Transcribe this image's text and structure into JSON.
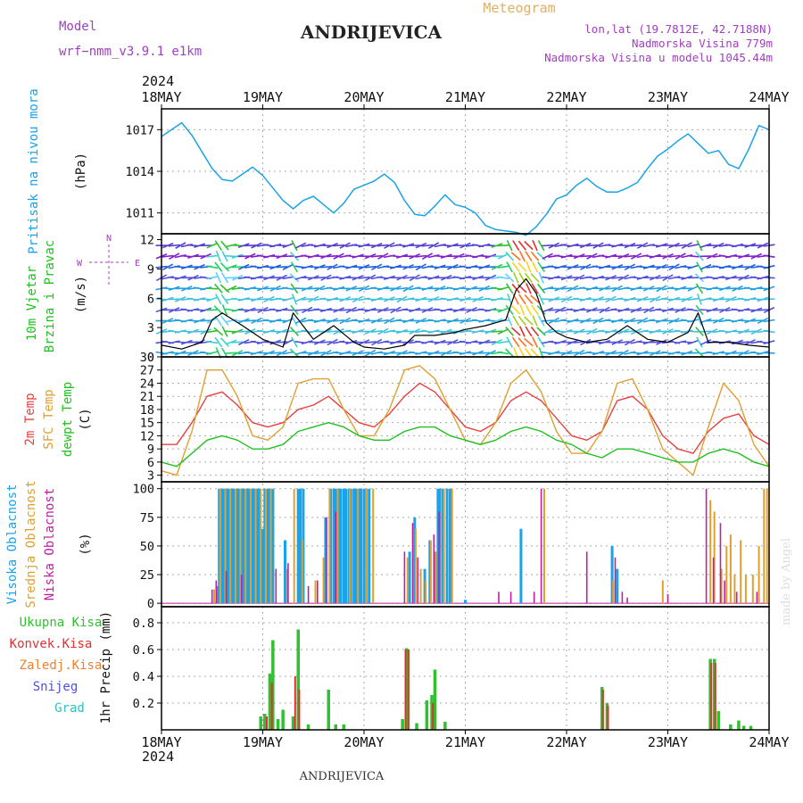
{
  "header": {
    "model_label": "Model",
    "model_value": "wrf−nmm_v3.9.1  e1km",
    "station": "ANDRIJEVICA",
    "meteogram_label": "Meteogram",
    "lonlat": "lon,lat (19.7812E, 42.7188N)",
    "elevation": "Nadmorska Visina 779m",
    "model_elevation": "Nadmorska Visina u modelu 1045.44m",
    "footer_station": "ANDRIJEVICA",
    "watermark": "made by Angel",
    "year": "2024"
  },
  "colors": {
    "pressure": "#1aa3e8",
    "temp2m": "#e84040",
    "sfc": "#e0a030",
    "dewpt": "#20c020",
    "precip": "#30c030",
    "conv": "#e03030",
    "frozen": "#f08030",
    "snow": "#5050e0",
    "hail": "#30c0c0",
    "high_cloud": "#1aa3e8",
    "mid_cloud": "#e0a030",
    "low_cloud": "#c020a0",
    "purple_text": "#a040c0",
    "orange_text": "#e0b060"
  },
  "chart_data": [
    {
      "type": "line",
      "panel": "pressure",
      "ylabel": "Pritisak na nivou mora",
      "unit": "(hPa)",
      "x_labels": [
        "18MAY",
        "19MAY",
        "20MAY",
        "21MAY",
        "22MAY",
        "23MAY",
        "24MAY"
      ],
      "yticks": [
        1011,
        1014,
        1017
      ],
      "ylim": [
        1009.5,
        1018.5
      ],
      "x": [
        0,
        0.1,
        0.2,
        0.3,
        0.4,
        0.5,
        0.6,
        0.7,
        0.8,
        0.9,
        1.0,
        1.1,
        1.2,
        1.3,
        1.4,
        1.5,
        1.6,
        1.7,
        1.8,
        1.9,
        2.0,
        2.1,
        2.2,
        2.3,
        2.4,
        2.5,
        2.6,
        2.7,
        2.8,
        2.9,
        3.0,
        3.1,
        3.2,
        3.3,
        3.4,
        3.5,
        3.6,
        3.7,
        3.8,
        3.9,
        4.0,
        4.1,
        4.2,
        4.3,
        4.4,
        4.5,
        4.6,
        4.7,
        4.8,
        4.9,
        5.0,
        5.1,
        5.2,
        5.3,
        5.4,
        5.5,
        5.6,
        5.7,
        5.8,
        5.9,
        6.0
      ],
      "values": [
        1016.5,
        1017.0,
        1017.5,
        1016.6,
        1015.4,
        1014.2,
        1013.4,
        1013.3,
        1013.8,
        1014.3,
        1013.7,
        1012.8,
        1011.9,
        1011.3,
        1011.9,
        1012.2,
        1011.6,
        1011.0,
        1011.7,
        1012.7,
        1013.0,
        1013.3,
        1013.8,
        1013.2,
        1011.9,
        1010.9,
        1010.8,
        1011.5,
        1012.3,
        1011.6,
        1011.4,
        1011.0,
        1010.1,
        1009.8,
        1009.7,
        1009.6,
        1009.4,
        1010.0,
        1010.9,
        1012.0,
        1012.3,
        1013.0,
        1013.5,
        1012.9,
        1012.5,
        1012.5,
        1012.8,
        1013.2,
        1014.2,
        1015.1,
        1015.6,
        1016.2,
        1016.7,
        1016.0,
        1015.3,
        1015.5,
        1014.5,
        1014.2,
        1015.6,
        1017.3,
        1017.0
      ]
    },
    {
      "type": "line",
      "panel": "wind",
      "ylabel": "10m Vjetar Brzina i Pravac",
      "unit": "(m/s)",
      "compass": {
        "n": "N",
        "w": "W",
        "e": "E"
      },
      "yticks": [
        0,
        3,
        6,
        9,
        12
      ],
      "ylim": [
        0,
        12.6
      ],
      "series": [
        {
          "name": "Brzina",
          "x": [
            0,
            0.2,
            0.4,
            0.5,
            0.6,
            0.8,
            1.0,
            1.2,
            1.3,
            1.5,
            1.7,
            1.9,
            2.0,
            2.2,
            2.4,
            2.5,
            2.7,
            2.9,
            3.0,
            3.2,
            3.4,
            3.5,
            3.6,
            3.7,
            3.8,
            3.9,
            4.0,
            4.2,
            4.4,
            4.6,
            4.8,
            5.0,
            5.2,
            5.3,
            5.4,
            5.6,
            5.8,
            6.0
          ],
          "values": [
            1.2,
            0.8,
            1.5,
            3.8,
            4.5,
            3.2,
            1.8,
            1.0,
            4.5,
            1.8,
            3.2,
            1.5,
            1.0,
            0.8,
            1.2,
            2.2,
            2.2,
            2.5,
            2.8,
            3.2,
            3.8,
            6.8,
            8.0,
            6.5,
            3.5,
            2.5,
            2.0,
            1.5,
            1.8,
            3.2,
            1.8,
            1.5,
            2.5,
            4.5,
            1.5,
            1.5,
            1.2,
            1.0
          ]
        }
      ]
    },
    {
      "type": "line",
      "panel": "temperature",
      "ylabels": [
        "2m Temp",
        "SFC Temp",
        "dewpt Temp"
      ],
      "unit": "(C)",
      "yticks": [
        3,
        6,
        9,
        12,
        15,
        18,
        21,
        24,
        27,
        30
      ],
      "ylim": [
        1.5,
        30
      ],
      "series": [
        {
          "name": "2m Temp",
          "x": [
            0,
            0.15,
            0.3,
            0.45,
            0.6,
            0.75,
            0.9,
            1.05,
            1.2,
            1.35,
            1.5,
            1.65,
            1.8,
            1.95,
            2.1,
            2.25,
            2.4,
            2.55,
            2.7,
            2.85,
            3.0,
            3.15,
            3.3,
            3.45,
            3.6,
            3.75,
            3.9,
            4.05,
            4.2,
            4.35,
            4.5,
            4.65,
            4.8,
            4.95,
            5.1,
            5.25,
            5.4,
            5.55,
            5.7,
            5.85,
            6.0
          ],
          "values": [
            10,
            10,
            15,
            21,
            22,
            19,
            15,
            14,
            15,
            18,
            19,
            21,
            18,
            15,
            14,
            17,
            21,
            24,
            22,
            18,
            14,
            13,
            15,
            20,
            22,
            20,
            16,
            12,
            11,
            13,
            20,
            21,
            18,
            12,
            9,
            8,
            13,
            16,
            17,
            12,
            10
          ]
        },
        {
          "name": "SFC Temp",
          "x": [
            0,
            0.15,
            0.3,
            0.45,
            0.6,
            0.75,
            0.9,
            1.05,
            1.2,
            1.35,
            1.5,
            1.65,
            1.8,
            1.95,
            2.1,
            2.25,
            2.4,
            2.55,
            2.7,
            2.85,
            3.0,
            3.15,
            3.3,
            3.45,
            3.6,
            3.75,
            3.9,
            4.05,
            4.2,
            4.35,
            4.5,
            4.65,
            4.8,
            4.95,
            5.1,
            5.25,
            5.4,
            5.55,
            5.7,
            5.85,
            6.0
          ],
          "values": [
            4,
            3,
            13,
            27,
            27,
            21,
            12,
            11,
            14,
            24,
            25,
            25,
            18,
            12,
            12,
            18,
            27,
            28,
            25,
            18,
            11,
            10,
            15,
            24,
            27,
            22,
            13,
            8,
            8,
            13,
            24,
            25,
            18,
            9,
            6,
            3,
            14,
            24,
            20,
            10,
            5
          ]
        },
        {
          "name": "dewpt Temp",
          "x": [
            0,
            0.15,
            0.3,
            0.45,
            0.6,
            0.75,
            0.9,
            1.05,
            1.2,
            1.35,
            1.5,
            1.65,
            1.8,
            1.95,
            2.1,
            2.25,
            2.4,
            2.55,
            2.7,
            2.85,
            3.0,
            3.15,
            3.3,
            3.45,
            3.6,
            3.75,
            3.9,
            4.05,
            4.2,
            4.35,
            4.5,
            4.65,
            4.8,
            4.95,
            5.1,
            5.25,
            5.4,
            5.55,
            5.7,
            5.85,
            6.0
          ],
          "values": [
            6,
            5,
            8,
            11,
            12,
            11,
            9,
            9,
            10,
            13,
            14,
            15,
            14,
            12,
            11,
            11,
            13,
            14,
            14,
            12,
            11,
            10,
            11,
            13,
            14,
            13,
            11,
            10,
            8,
            7,
            9,
            9,
            8,
            7,
            6,
            6,
            8,
            9,
            8,
            6,
            5
          ]
        }
      ]
    },
    {
      "type": "bar",
      "panel": "cloud",
      "ylabels": [
        "Visoka Oblacnost",
        "Srednja Oblacnost",
        "Niska Oblacnost"
      ],
      "unit": "(%)",
      "yticks": [
        0,
        25,
        50,
        75,
        100
      ],
      "ylim": [
        -3,
        106
      ],
      "series": [
        {
          "name": "Visoka Oblacnost",
          "x": [
            0.55,
            0.57,
            0.6,
            0.62,
            0.65,
            0.67,
            0.7,
            0.72,
            0.75,
            0.77,
            0.8,
            0.82,
            0.85,
            0.87,
            0.9,
            0.92,
            0.95,
            0.97,
            1.0,
            1.02,
            1.05,
            1.07,
            1.1,
            1.22,
            1.35,
            1.37,
            1.4,
            1.62,
            1.67,
            1.7,
            1.72,
            1.75,
            1.77,
            1.8,
            1.82,
            1.85,
            1.87,
            1.9,
            1.92,
            1.95,
            1.97,
            2.0,
            2.02,
            2.05,
            2.45,
            2.5,
            2.6,
            2.65,
            2.7,
            2.73,
            2.75,
            2.78,
            2.82,
            2.85,
            3.0,
            3.55,
            4.45,
            4.5
          ],
          "values": [
            15,
            100,
            100,
            100,
            100,
            100,
            100,
            100,
            100,
            100,
            100,
            100,
            100,
            100,
            100,
            100,
            100,
            100,
            65,
            100,
            100,
            100,
            100,
            55,
            100,
            100,
            100,
            75,
            100,
            100,
            100,
            100,
            100,
            100,
            100,
            100,
            100,
            100,
            100,
            100,
            100,
            100,
            100,
            100,
            45,
            75,
            30,
            55,
            45,
            100,
            100,
            100,
            100,
            100,
            3,
            65,
            50,
            30
          ]
        },
        {
          "name": "Srednja Oblacnost",
          "x": [
            0.52,
            0.58,
            0.63,
            0.68,
            0.73,
            0.78,
            0.83,
            0.88,
            0.93,
            0.98,
            1.03,
            1.08,
            1.24,
            1.31,
            1.39,
            1.52,
            1.6,
            1.66,
            1.74,
            1.86,
            1.94,
            2.02,
            2.09,
            2.43,
            2.51,
            2.56,
            2.61,
            2.66,
            2.71,
            2.79,
            2.87,
            3.78,
            4.46,
            4.95,
            5.42,
            5.46,
            5.53,
            5.58,
            5.62,
            5.66,
            5.72,
            5.77,
            5.84,
            5.9,
            5.95,
            5.98
          ],
          "values": [
            12,
            100,
            100,
            100,
            100,
            100,
            100,
            100,
            100,
            100,
            100,
            100,
            30,
            100,
            55,
            20,
            40,
            100,
            100,
            100,
            100,
            100,
            100,
            40,
            65,
            30,
            20,
            55,
            45,
            100,
            100,
            100,
            20,
            20,
            90,
            80,
            30,
            50,
            60,
            25,
            55,
            25,
            25,
            50,
            100,
            100
          ]
        },
        {
          "name": "Niska Oblacnost",
          "x": [
            0.5,
            0.54,
            0.64,
            0.79,
            1.13,
            1.25,
            1.45,
            1.54,
            1.63,
            1.72,
            2.4,
            2.48,
            2.53,
            2.69,
            2.74,
            3.33,
            3.45,
            3.68,
            3.75,
            4.2,
            4.48,
            4.55,
            4.6,
            5.0,
            5.38,
            5.45,
            5.52,
            5.56,
            5.68,
            5.88
          ],
          "values": [
            12,
            20,
            28,
            25,
            30,
            35,
            15,
            20,
            75,
            80,
            45,
            70,
            40,
            60,
            80,
            10,
            10,
            10,
            100,
            45,
            40,
            10,
            5,
            8,
            100,
            40,
            70,
            20,
            10,
            10
          ]
        }
      ]
    },
    {
      "type": "bar",
      "panel": "precip",
      "legend": [
        "Ukupna Kisa",
        "Konvek.Kisa",
        "Zaledj.Kisa",
        "Snijeg",
        "Grad"
      ],
      "unit": "1hr Precip (mm)",
      "yticks": [
        0.2,
        0.4,
        0.6,
        0.8
      ],
      "ylim": [
        0,
        0.92
      ],
      "series": [
        {
          "name": "Ukupna Kisa",
          "x": [
            0.98,
            1.02,
            1.07,
            1.1,
            1.15,
            1.2,
            1.3,
            1.35,
            1.45,
            1.65,
            1.72,
            1.8,
            2.38,
            2.42,
            2.52,
            2.62,
            2.67,
            2.7,
            2.8,
            4.35,
            4.4,
            5.42,
            5.46,
            5.5,
            5.62,
            5.7,
            5.75,
            5.82
          ],
          "values": [
            0.1,
            0.12,
            0.42,
            0.67,
            0.08,
            0.15,
            0.1,
            0.75,
            0.04,
            0.3,
            0.04,
            0.04,
            0.08,
            0.61,
            0.05,
            0.22,
            0.26,
            0.45,
            0.06,
            0.32,
            0.2,
            0.53,
            0.53,
            0.14,
            0.04,
            0.07,
            0.03,
            0.03
          ]
        },
        {
          "name": "Konvek.Kisa",
          "x": [
            1.04,
            1.09,
            1.32,
            1.36,
            2.41,
            2.44,
            2.68,
            4.36,
            4.41,
            5.43,
            5.47
          ],
          "values": [
            0.1,
            0.35,
            0.4,
            0.3,
            0.6,
            0.6,
            0.2,
            0.3,
            0.18,
            0.5,
            0.5
          ]
        }
      ]
    }
  ]
}
